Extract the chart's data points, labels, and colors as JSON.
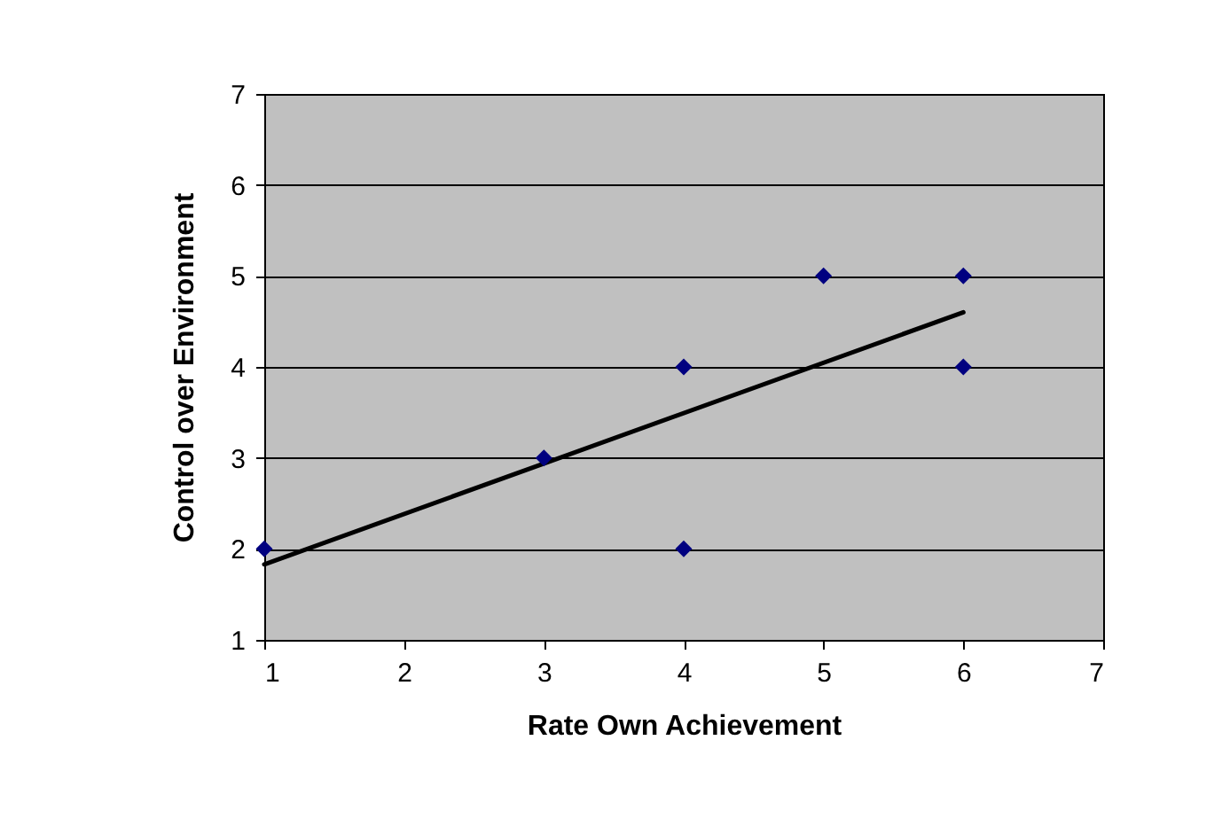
{
  "chart_data": {
    "type": "scatter",
    "xlabel": "Rate Own Achievement",
    "ylabel": "Control over Environment",
    "xlim": [
      1,
      7
    ],
    "xticks": [
      1,
      2,
      3,
      4,
      5,
      6,
      7
    ],
    "ylim": [
      1,
      7
    ],
    "yticks": [
      1,
      2,
      3,
      4,
      5,
      6,
      7
    ],
    "grid": "y",
    "series": [
      {
        "color": "#000080",
        "marker": "diamond",
        "x": [
          1,
          3,
          4,
          4,
          5,
          6,
          6
        ],
        "values": [
          2,
          3,
          4,
          2,
          5,
          5,
          4
        ]
      },
      {
        "type": "line",
        "color": "#000000",
        "marker": "none",
        "x": [
          1,
          6
        ],
        "values": [
          1.83,
          4.6
        ]
      }
    ]
  }
}
